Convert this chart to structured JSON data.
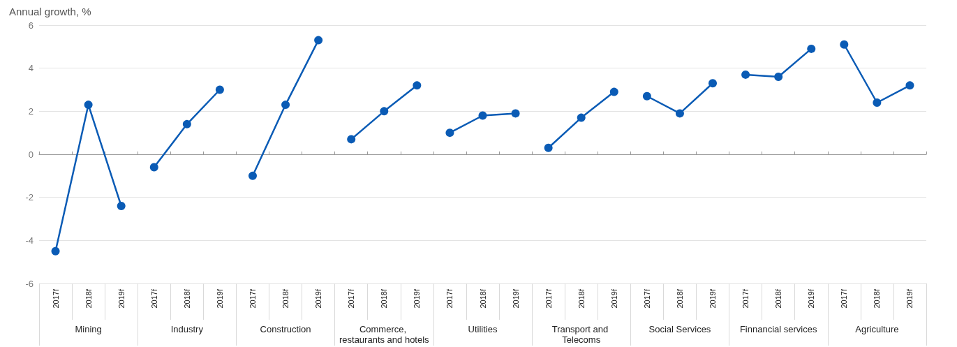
{
  "chart_data": {
    "type": "line",
    "title": "Annual growth, %",
    "categories": [
      "2017f",
      "2018f",
      "2019f",
      "2017f",
      "2018f",
      "2019f",
      "2017f",
      "2018f",
      "2019f",
      "2017f",
      "2018f",
      "2019f",
      "2017f",
      "2018f",
      "2019f",
      "2017f",
      "2018f",
      "2019f",
      "2017f",
      "2018f",
      "2019f",
      "2017f",
      "2018f",
      "2019f",
      "2017f",
      "2018f",
      "2019f"
    ],
    "annotations": [
      "Mining",
      "Industry",
      "Construction",
      "Commerce, restaurants and hotels",
      "Utilities",
      "Transport and Telecoms",
      "Social Services",
      "Finnancial services",
      "Agriculture"
    ],
    "series": [
      {
        "color": "#0a5bb5",
        "values": [
          -4.5,
          2.3,
          -2.4,
          null,
          null,
          null,
          null,
          null,
          null,
          null,
          null,
          null,
          null,
          null,
          null,
          null,
          null,
          null,
          null,
          null,
          null,
          null,
          null,
          null,
          null,
          null,
          null
        ]
      },
      {
        "color": "#0a5bb5",
        "values": [
          null,
          null,
          null,
          -0.6,
          1.4,
          3.0,
          null,
          null,
          null,
          null,
          null,
          null,
          null,
          null,
          null,
          null,
          null,
          null,
          null,
          null,
          null,
          null,
          null,
          null,
          null,
          null,
          null
        ]
      },
      {
        "color": "#0a5bb5",
        "values": [
          null,
          null,
          null,
          null,
          null,
          null,
          -1.0,
          2.3,
          5.3,
          null,
          null,
          null,
          null,
          null,
          null,
          null,
          null,
          null,
          null,
          null,
          null,
          null,
          null,
          null,
          null,
          null,
          null
        ]
      },
      {
        "color": "#0a5bb5",
        "values": [
          null,
          null,
          null,
          null,
          null,
          null,
          null,
          null,
          null,
          0.7,
          2.0,
          3.2,
          null,
          null,
          null,
          null,
          null,
          null,
          null,
          null,
          null,
          null,
          null,
          null,
          null,
          null,
          null
        ]
      },
      {
        "color": "#0a5bb5",
        "values": [
          null,
          null,
          null,
          null,
          null,
          null,
          null,
          null,
          null,
          null,
          null,
          null,
          1.0,
          1.8,
          1.9,
          null,
          null,
          null,
          null,
          null,
          null,
          null,
          null,
          null,
          null,
          null,
          null
        ]
      },
      {
        "color": "#0a5bb5",
        "values": [
          null,
          null,
          null,
          null,
          null,
          null,
          null,
          null,
          null,
          null,
          null,
          null,
          null,
          null,
          null,
          0.3,
          1.7,
          2.9,
          null,
          null,
          null,
          null,
          null,
          null,
          null,
          null,
          null
        ]
      },
      {
        "color": "#0a5bb5",
        "values": [
          null,
          null,
          null,
          null,
          null,
          null,
          null,
          null,
          null,
          null,
          null,
          null,
          null,
          null,
          null,
          null,
          null,
          null,
          2.7,
          1.9,
          3.3,
          null,
          null,
          null,
          null,
          null,
          null
        ]
      },
      {
        "color": "#0a5bb5",
        "values": [
          null,
          null,
          null,
          null,
          null,
          null,
          null,
          null,
          null,
          null,
          null,
          null,
          null,
          null,
          null,
          null,
          null,
          null,
          null,
          null,
          null,
          3.7,
          3.6,
          4.9,
          null,
          null,
          null
        ]
      },
      {
        "color": "#0a5bb5",
        "values": [
          null,
          null,
          null,
          null,
          null,
          null,
          null,
          null,
          null,
          null,
          null,
          null,
          null,
          null,
          null,
          null,
          null,
          null,
          null,
          null,
          null,
          null,
          null,
          null,
          5.1,
          2.4,
          3.2
        ]
      }
    ],
    "ylim": [
      -6,
      6
    ],
    "yticks": [
      -6,
      -4,
      -2,
      0,
      2,
      4,
      6
    ],
    "grid": "y",
    "marker": "circle",
    "line_style": "solid"
  }
}
